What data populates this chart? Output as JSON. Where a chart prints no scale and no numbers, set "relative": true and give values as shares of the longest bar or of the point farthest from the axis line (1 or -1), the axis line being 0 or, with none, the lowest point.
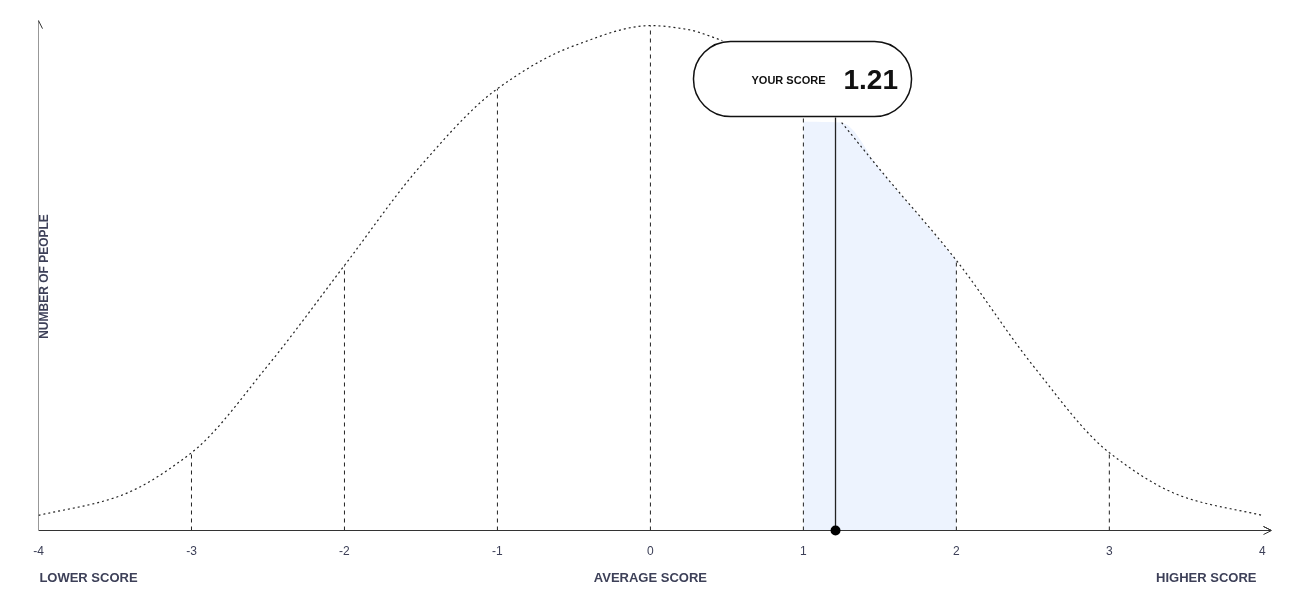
{
  "chart_data": {
    "type": "line",
    "relative": true,
    "xlabel": "AVERAGE SCORE",
    "ylabel": "NUMBER OF PEOPLE",
    "line_style": "dotted",
    "xlim": [
      -4,
      4.06
    ],
    "xticks": [
      -4,
      -3,
      -2,
      -1,
      0,
      1,
      2,
      3,
      4
    ],
    "series": [
      {
        "color": "#222222",
        "x": [
          -4,
          -3.5,
          -3,
          -2.5,
          -2,
          -1.5,
          -1,
          -0.5,
          0,
          0.25,
          0.4,
          0.47,
          0.8,
          1.25,
          1.5,
          2,
          2.5,
          3,
          3.5,
          4
        ],
        "values": [
          0.03,
          0.065,
          0.154,
          0.327,
          0.525,
          0.723,
          0.875,
          0.96,
          1,
          0.992,
          0.978,
          0.97,
          null,
          0.808,
          0.715,
          0.535,
          0.327,
          0.154,
          0.065,
          0.03
        ]
      },
      {
        "type": "area",
        "color": "#edf3fe",
        "x": [
          1,
          1.25,
          1.5,
          2
        ],
        "values": [
          0.81,
          0.808,
          0.715,
          0.535
        ]
      },
      {
        "type": "scatter",
        "color": "#000000",
        "x": [
          1.21
        ],
        "values": [
          0
        ]
      }
    ],
    "ref_lines": [
      {
        "axis": "x",
        "value": -3,
        "line_style": "dashed"
      },
      {
        "axis": "x",
        "value": -2,
        "line_style": "dashed"
      },
      {
        "axis": "x",
        "value": -1,
        "line_style": "dashed"
      },
      {
        "axis": "x",
        "value": 0,
        "line_style": "dashed"
      },
      {
        "axis": "x",
        "value": 1,
        "line_style": "dashed"
      },
      {
        "axis": "x",
        "value": 2,
        "line_style": "dashed"
      },
      {
        "axis": "x",
        "value": 3,
        "line_style": "dashed"
      },
      {
        "axis": "x",
        "value": 1.21,
        "label": "YOUR SCORE",
        "line_style": "solid",
        "color": "#222222"
      }
    ],
    "annotations": [
      "LOWER SCORE",
      "HIGHER SCORE",
      "1.21"
    ]
  }
}
